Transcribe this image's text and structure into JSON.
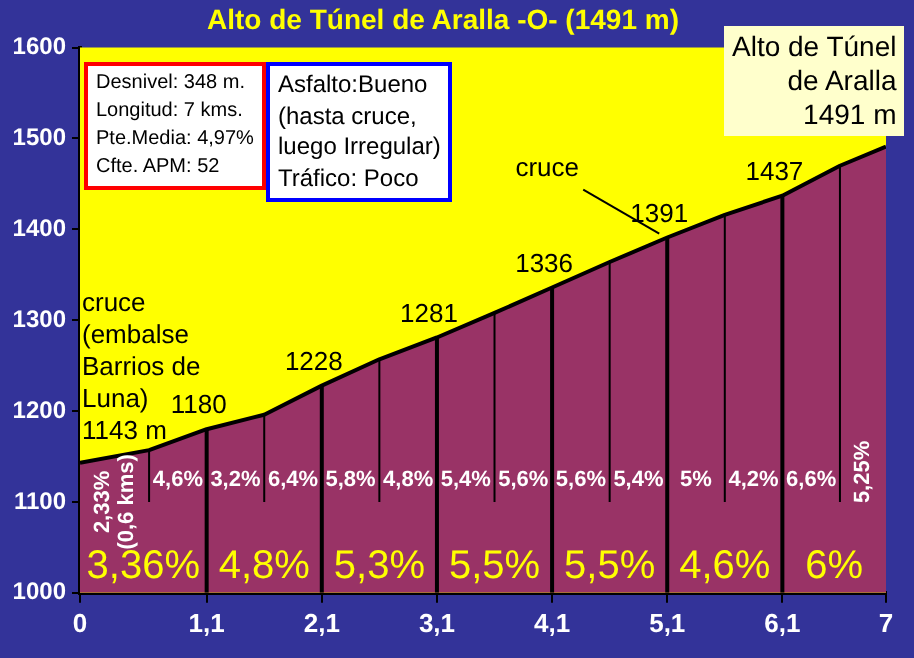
{
  "chart_data": {
    "type": "area",
    "title": "Alto de Túnel de Aralla -O- (1491 m)",
    "x": [
      0,
      0.6,
      1.1,
      1.6,
      2.1,
      2.6,
      3.1,
      3.6,
      4.1,
      4.6,
      5.1,
      5.6,
      6.1,
      6.6,
      7
    ],
    "series": [
      {
        "color": "#993366",
        "values": [
          1143,
          1157,
          1180,
          1196,
          1228,
          1257,
          1281,
          1308,
          1336,
          1364,
          1391,
          1416,
          1437,
          1470,
          1491
        ],
        "value_labels": [
          null,
          null,
          "1180",
          null,
          "1228",
          null,
          "1281",
          null,
          "1336",
          null,
          "1391",
          null,
          "1437",
          null,
          null
        ]
      }
    ],
    "ref_lines": [
      {
        "axis": "x",
        "value": 0.6
      },
      {
        "axis": "x",
        "value": 1.1
      },
      {
        "axis": "x",
        "value": 1.6
      },
      {
        "axis": "x",
        "value": 2.1
      },
      {
        "axis": "x",
        "value": 2.6
      },
      {
        "axis": "x",
        "value": 3.1
      },
      {
        "axis": "x",
        "value": 3.6
      },
      {
        "axis": "x",
        "value": 4.1
      },
      {
        "axis": "x",
        "value": 4.6
      },
      {
        "axis": "x",
        "value": 5.1
      },
      {
        "axis": "x",
        "value": 5.6
      },
      {
        "axis": "x",
        "value": 6.1
      },
      {
        "axis": "x",
        "value": 6.6
      }
    ],
    "xlim": [
      0,
      7
    ],
    "xticks": [
      0,
      {
        "value": 1.1,
        "label": "1,1"
      },
      {
        "value": 2.1,
        "label": "2,1"
      },
      {
        "value": 3.1,
        "label": "3,1"
      },
      {
        "value": 4.1,
        "label": "4,1"
      },
      {
        "value": 5.1,
        "label": "5,1"
      },
      {
        "value": 6.1,
        "label": "6,1"
      },
      7
    ],
    "ylim": [
      1000,
      1600
    ],
    "yticks": [
      1000,
      1100,
      1200,
      1300,
      1400,
      1500,
      1600
    ],
    "annotations": [
      "Desnivel: 348 m.\nLongitud: 7 kms.\nPte.Media: 4,97%\nCfte. APM: 52",
      "Asfalto:Bueno\n(hasta cruce,\nluego Irregular)\nTráfico: Poco",
      "Alto de Túnel\nde Aralla\n1491 m",
      {
        "text": "cruce\n(embalse\nBarrios de\nLuna)\n1143 m",
        "x": 0,
        "y": 1143
      },
      {
        "text": "cruce",
        "x": 5.1,
        "y": 1391
      },
      "2,33%\n(0,6 kms)",
      "4,6%",
      "3,2%",
      "6,4%",
      "5,8%",
      "4,8%",
      "5,4%",
      "5,6%",
      "5,6%",
      "5,4%",
      "5%",
      "4,2%",
      "6,6%",
      "5,25%",
      "3,36%",
      "4,8%",
      "5,3%",
      "5,5%",
      "5,5%",
      "4,6%",
      "6%"
    ]
  }
}
